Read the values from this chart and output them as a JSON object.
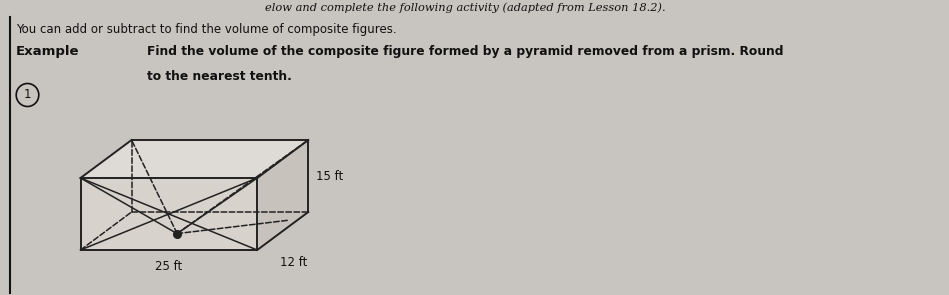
{
  "bg_color": "#c8c4c0",
  "title_line": "elow and complete the following activity (adapted from Lesson 18.2).",
  "subtitle": "You can add or subtract to find the volume of composite figures.",
  "example_label": "Example",
  "bold_text_line1": "Find the volume of the composite figure formed by a pyramid removed from a prism. Round",
  "bold_text_line2": "to the nearest tenth.",
  "circle_num": "1",
  "dim_25": "25 ft",
  "dim_12": "12 ft",
  "dim_15": "15 ft",
  "text_color": "#111111",
  "figure_color": "#222222",
  "figure_fill": "#d8d2cc",
  "figure_fill_right": "#c8c2bc",
  "figure_fill_top": "#dedad6"
}
